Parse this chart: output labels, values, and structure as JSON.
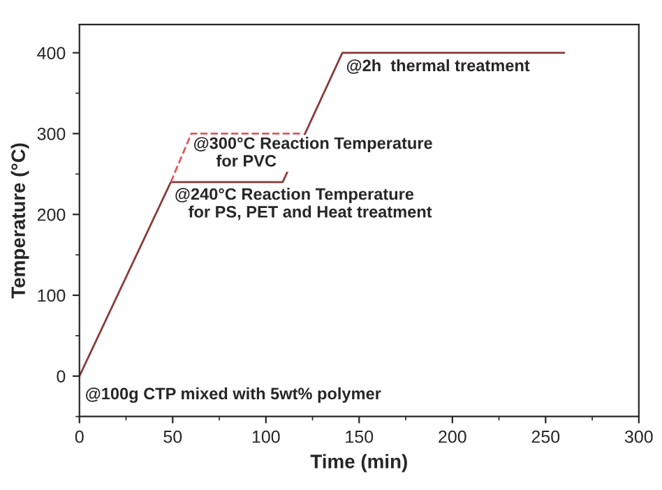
{
  "chart_data": {
    "type": "line",
    "xlabel": "Time (min)",
    "ylabel": "Temperature (°C)",
    "xlim": [
      0,
      300
    ],
    "xticks": [
      0,
      50,
      100,
      150,
      200,
      250,
      300
    ],
    "ylim": [
      -50,
      435
    ],
    "yticks": [
      0,
      100,
      200,
      300,
      400
    ],
    "series": [
      {
        "color": "#8b3a3a",
        "line_style": "solid",
        "x": [
          0,
          49,
          109,
          141,
          260
        ],
        "values": [
          0,
          240,
          240,
          400,
          400
        ]
      },
      {
        "color": "#e05a5a",
        "line_style": "dashed",
        "x": [
          49,
          60,
          120
        ],
        "values": [
          240,
          300,
          300
        ]
      }
    ],
    "annotations": [
      {
        "text": "@2h  thermal treatment",
        "x": 143,
        "y": 392
      },
      {
        "text": "@300°C Reaction Temperature\n     for PVC",
        "x": 61,
        "y": 296
      },
      {
        "text": "@240°C Reaction Temperature\n   for PS, PET and Heat treatment",
        "x": 51,
        "y": 233
      },
      "@100g CTP mixed with 5wt% polymer"
    ],
    "grid": false,
    "legend": false
  }
}
